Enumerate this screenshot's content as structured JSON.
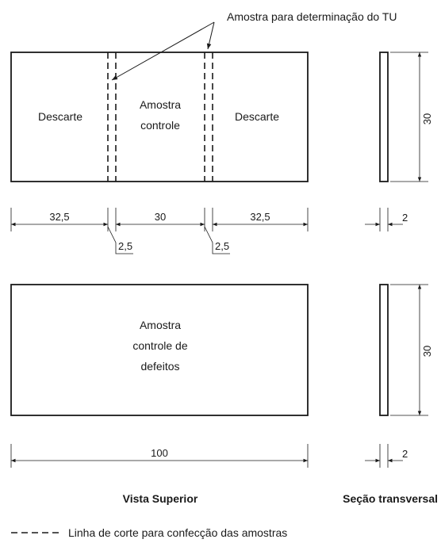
{
  "callout_label": "Amostra para determinação do TU",
  "top_view": {
    "left_label": "Descarte",
    "center_label_line1": "Amostra",
    "center_label_line2": "controle",
    "right_label": "Descarte"
  },
  "bottom_view": {
    "label_line1": "Amostra",
    "label_line2": "controle de",
    "label_line3": "defeitos"
  },
  "dimensions": {
    "left_segment": "32,5",
    "center_segment": "30",
    "right_segment": "32,5",
    "cut_width_left": "2,5",
    "cut_width_right": "2,5",
    "total_length": "100",
    "height_top": "30",
    "height_bottom": "30",
    "thickness_top": "2",
    "thickness_bottom": "2"
  },
  "captions": {
    "top_view": "Vista Superior",
    "cross_section": "Seção transversal"
  },
  "legend": {
    "dashed_line": "Linha de corte para confecção das amostras"
  }
}
